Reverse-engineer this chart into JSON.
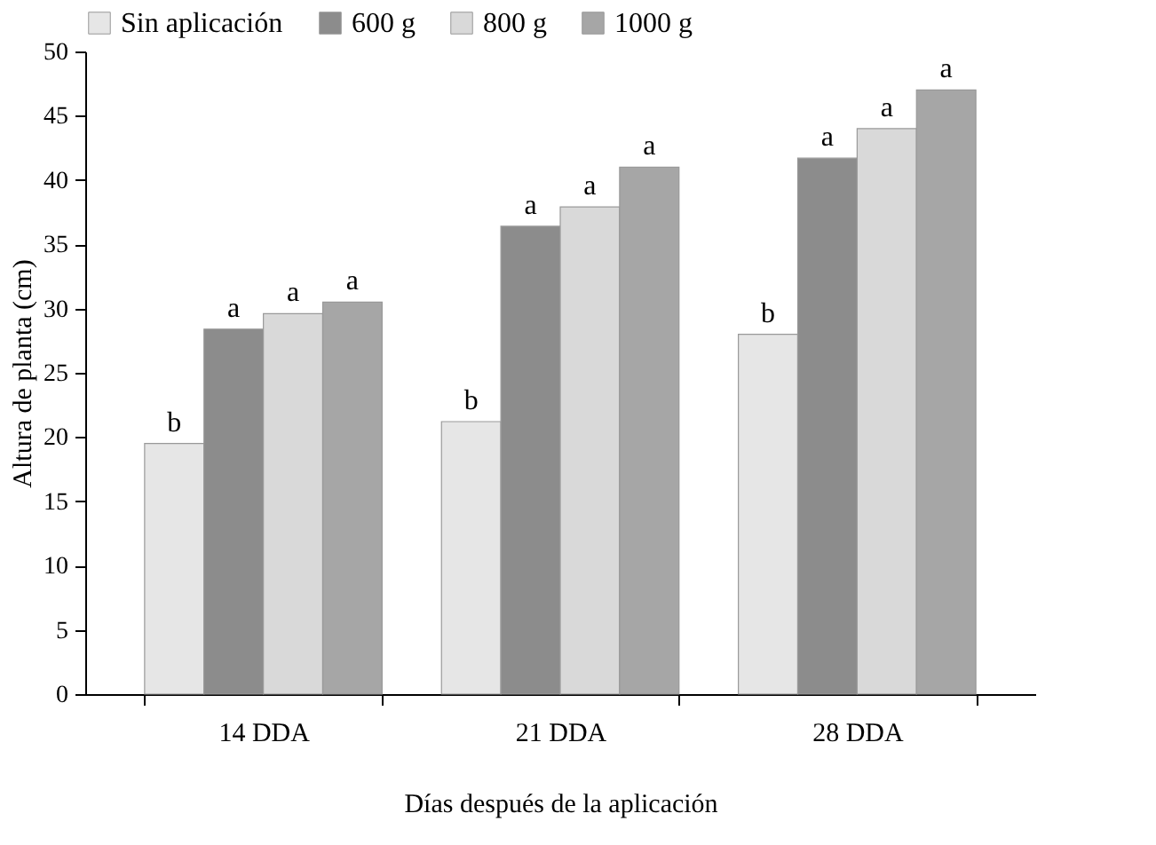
{
  "chart_data": {
    "type": "bar",
    "xlabel": "Días después de la aplicación",
    "ylabel": "Altura de planta (cm)",
    "categories": [
      "14 DDA",
      "21 DDA",
      "28 DDA"
    ],
    "series": [
      {
        "name": "Sin aplicación",
        "color": "#e6e6e6",
        "values": [
          19.5,
          21.2,
          28.0
        ],
        "value_labels": [
          "b",
          "b",
          "b"
        ]
      },
      {
        "name": "600 g",
        "color": "#8c8c8c",
        "values": [
          28.4,
          36.4,
          41.7
        ],
        "value_labels": [
          "a",
          "a",
          "a"
        ]
      },
      {
        "name": "800 g",
        "color": "#d9d9d9",
        "values": [
          29.6,
          37.9,
          44.0
        ],
        "value_labels": [
          "a",
          "a",
          "a"
        ]
      },
      {
        "name": "1000 g",
        "color": "#a6a6a6",
        "values": [
          30.5,
          41.0,
          47.0
        ],
        "value_labels": [
          "a",
          "a",
          "a"
        ]
      }
    ],
    "ylim": [
      0,
      50
    ],
    "yticks": [
      0,
      5,
      10,
      15,
      20,
      25,
      30,
      35,
      40,
      45,
      50
    ],
    "grid": false,
    "legend": "top"
  }
}
